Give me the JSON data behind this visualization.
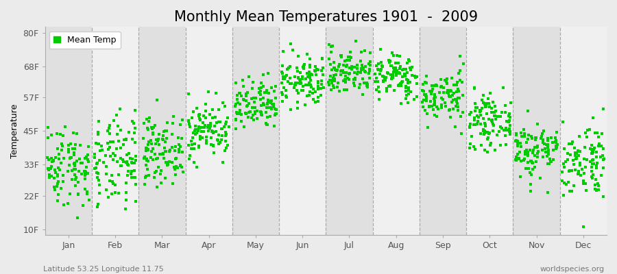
{
  "title": "Monthly Mean Temperatures 1901  -  2009",
  "ylabel": "Temperature",
  "bottom_left_text": "Latitude 53.25 Longitude 11.75",
  "bottom_right_text": "worldspecies.org",
  "legend_label": "Mean Temp",
  "ytick_values": [
    10,
    22,
    33,
    45,
    57,
    68,
    80
  ],
  "ytick_labels": [
    "10F",
    "22F",
    "33F",
    "45F",
    "57F",
    "68F",
    "80F"
  ],
  "ylim": [
    8,
    82
  ],
  "months": [
    "Jan",
    "Feb",
    "Mar",
    "Apr",
    "May",
    "Jun",
    "Jul",
    "Aug",
    "Sep",
    "Oct",
    "Nov",
    "Dec"
  ],
  "marker_color": "#00cc00",
  "marker_size": 3,
  "background_color": "#ebebeb",
  "band_colors": [
    "#e0e0e0",
    "#f0f0f0"
  ],
  "title_fontsize": 15,
  "axis_label_fontsize": 9,
  "tick_fontsize": 9,
  "n_years": 109,
  "monthly_mean_temps_C": [
    0.5,
    0.8,
    3.5,
    7.5,
    12.0,
    17.0,
    19.0,
    18.0,
    14.0,
    9.0,
    3.5,
    1.5
  ],
  "monthly_std_temps_C": [
    4.0,
    4.5,
    3.2,
    2.8,
    2.6,
    2.5,
    2.3,
    2.3,
    2.5,
    2.5,
    2.8,
    3.8
  ]
}
